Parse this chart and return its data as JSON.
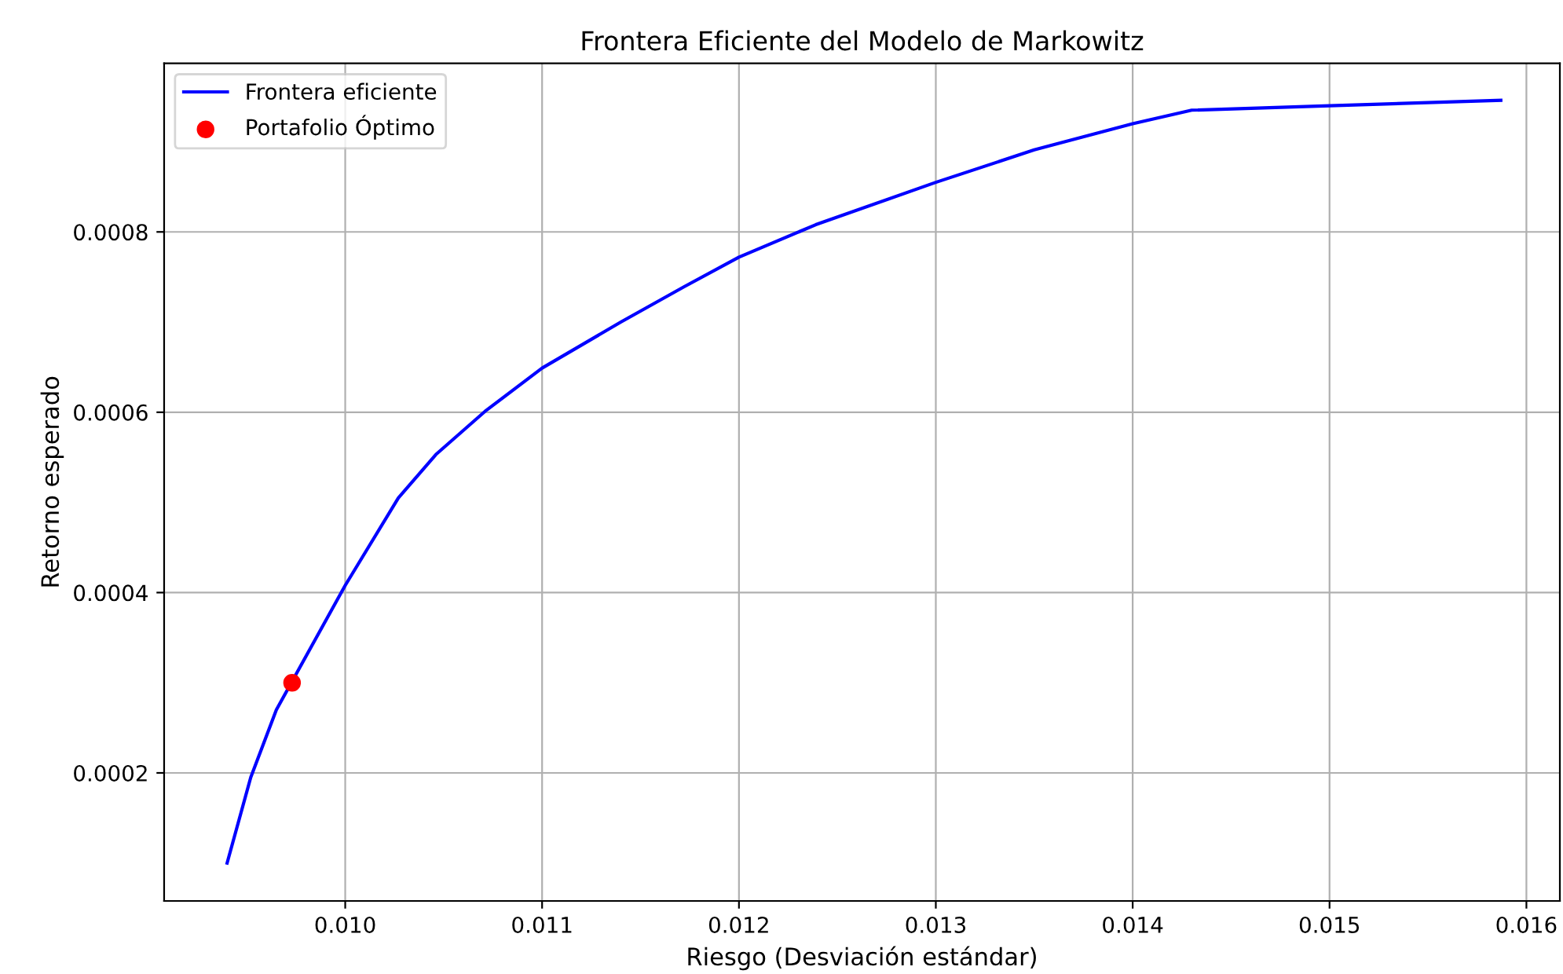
{
  "chart_data": {
    "type": "line",
    "title": "Frontera Eficiente del Modelo de Markowitz",
    "xlabel": "Riesgo (Desviación estándar)",
    "ylabel": "Retorno esperado",
    "series": [
      {
        "name": "Frontera eficiente",
        "color": "#0000ff",
        "marker": "none",
        "line_style": "solid",
        "x": [
          0.0094,
          0.00952,
          0.00965,
          0.01,
          0.01027,
          0.01046,
          0.01071,
          0.011,
          0.0114,
          0.01172,
          0.012,
          0.01239,
          0.013,
          0.0135,
          0.014,
          0.0143,
          0.015,
          0.01587
        ],
        "values": [
          0.0001,
          0.000195,
          0.00027,
          0.000408,
          0.000505,
          0.000553,
          0.000601,
          0.000649,
          0.0007,
          0.000739,
          0.000772,
          0.000808,
          0.000855,
          0.000891,
          0.00092,
          0.000935,
          0.00094,
          0.000946
        ]
      },
      {
        "name": "Portafolio Óptimo",
        "type": "scatter",
        "color": "#ff0000",
        "marker": "circle",
        "x": [
          0.00973
        ],
        "values": [
          0.0003
        ]
      }
    ],
    "xlim": [
      0.00908,
      0.01617
    ],
    "ylim": [
      5.8e-05,
      0.000987
    ],
    "xticks": [
      {
        "value": 0.01,
        "label": "0.010"
      },
      0.011,
      0.012,
      0.013,
      0.014,
      0.015,
      0.016
    ],
    "yticks": [
      0.0002,
      0.0004,
      0.0006,
      0.0008
    ],
    "grid": true,
    "legend": "top left"
  }
}
